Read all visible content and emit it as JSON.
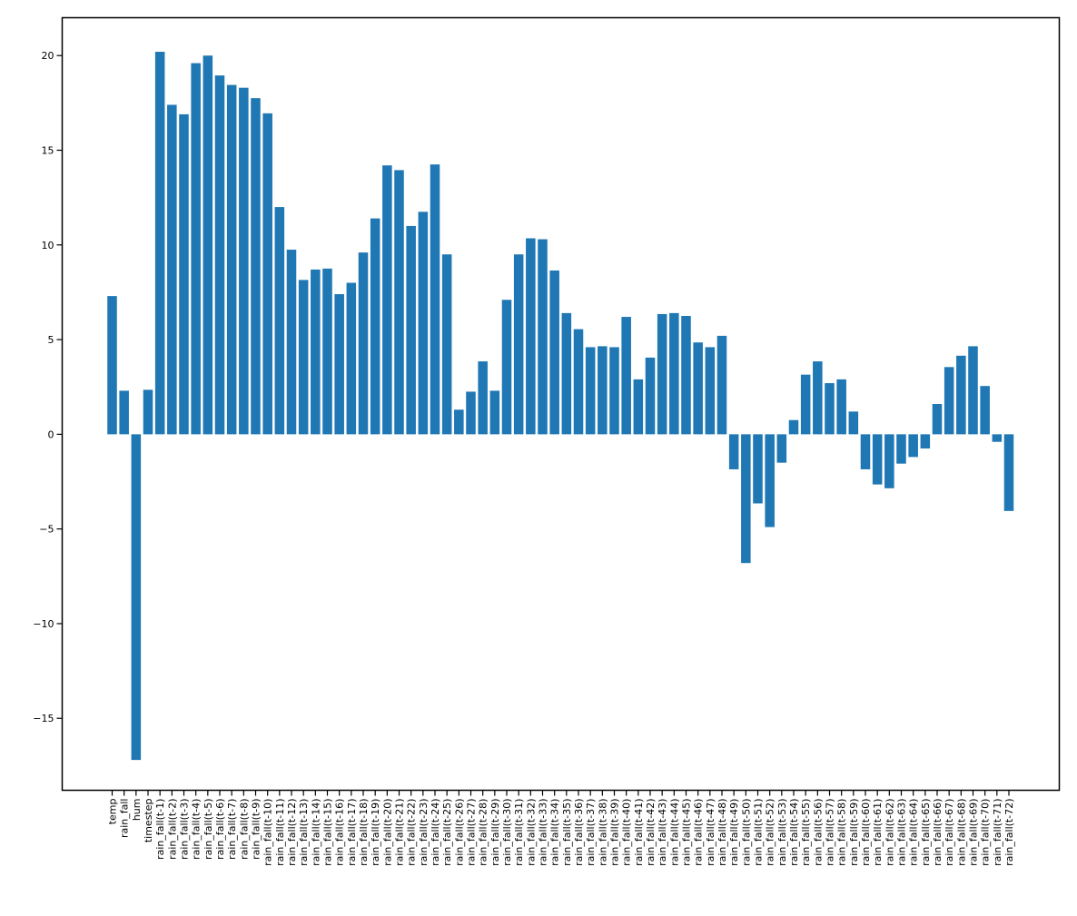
{
  "chart_data": {
    "type": "bar",
    "title": "",
    "xlabel": "",
    "ylabel": "",
    "ylim": [
      -18.8,
      22.0
    ],
    "yticks": [
      -15,
      -10,
      -5,
      0,
      5,
      10,
      15,
      20
    ],
    "ytick_labels": [
      "−15",
      "−10",
      "−5",
      "0",
      "5",
      "10",
      "15",
      "20"
    ],
    "grid": false,
    "legend": "none",
    "bar_color": "#1f77b4",
    "categories": [
      "temp",
      "rain_fall",
      "hum",
      "timestep",
      "rain_fall(t-1)",
      "rain_fall(t-2)",
      "rain_fall(t-3)",
      "rain_fall(t-4)",
      "rain_fall(t-5)",
      "rain_fall(t-6)",
      "rain_fall(t-7)",
      "rain_fall(t-8)",
      "rain_fall(t-9)",
      "rain_fall(t-10)",
      "rain_fall(t-11)",
      "rain_fall(t-12)",
      "rain_fall(t-13)",
      "rain_fall(t-14)",
      "rain_fall(t-15)",
      "rain_fall(t-16)",
      "rain_fall(t-17)",
      "rain_fall(t-18)",
      "rain_fall(t-19)",
      "rain_fall(t-20)",
      "rain_fall(t-21)",
      "rain_fall(t-22)",
      "rain_fall(t-23)",
      "rain_fall(t-24)",
      "rain_fall(t-25)",
      "rain_fall(t-26)",
      "rain_fall(t-27)",
      "rain_fall(t-28)",
      "rain_fall(t-29)",
      "rain_fall(t-30)",
      "rain_fall(t-31)",
      "rain_fall(t-32)",
      "rain_fall(t-33)",
      "rain_fall(t-34)",
      "rain_fall(t-35)",
      "rain_fall(t-36)",
      "rain_fall(t-37)",
      "rain_fall(t-38)",
      "rain_fall(t-39)",
      "rain_fall(t-40)",
      "rain_fall(t-41)",
      "rain_fall(t-42)",
      "rain_fall(t-43)",
      "rain_fall(t-44)",
      "rain_fall(t-45)",
      "rain_fall(t-46)",
      "rain_fall(t-47)",
      "rain_fall(t-48)",
      "rain_fall(t-49)",
      "rain_fall(t-50)",
      "rain_fall(t-51)",
      "rain_fall(t-52)",
      "rain_fall(t-53)",
      "rain_fall(t-54)",
      "rain_fall(t-55)",
      "rain_fall(t-56)",
      "rain_fall(t-57)",
      "rain_fall(t-58)",
      "rain_fall(t-59)",
      "rain_fall(t-60)",
      "rain_fall(t-61)",
      "rain_fall(t-62)",
      "rain_fall(t-63)",
      "rain_fall(t-64)",
      "rain_fall(t-65)",
      "rain_fall(t-66)",
      "rain_fall(t-67)",
      "rain_fall(t-68)",
      "rain_fall(t-69)",
      "rain_fall(t-70)",
      "rain_fall(t-71)",
      "rain_fall(t-72)"
    ],
    "values": [
      7.3,
      2.3,
      -17.2,
      2.35,
      20.2,
      17.4,
      16.9,
      19.6,
      20.0,
      18.95,
      18.45,
      18.3,
      17.75,
      16.95,
      12.0,
      9.75,
      8.15,
      8.7,
      8.75,
      7.4,
      8.0,
      9.6,
      11.4,
      14.2,
      13.95,
      11.0,
      11.75,
      14.25,
      9.5,
      1.3,
      2.25,
      3.85,
      2.3,
      7.1,
      9.5,
      10.35,
      10.3,
      8.65,
      6.4,
      5.55,
      4.6,
      4.65,
      4.6,
      6.2,
      2.9,
      4.05,
      6.35,
      6.4,
      6.25,
      4.85,
      4.6,
      5.2,
      -1.85,
      -6.8,
      -3.65,
      -4.9,
      -1.5,
      0.75,
      3.15,
      3.85,
      2.7,
      2.9,
      1.2,
      -1.85,
      -2.65,
      -2.85,
      -1.55,
      -1.2,
      -0.75,
      1.6,
      3.55,
      4.15,
      4.65,
      2.55,
      -0.4,
      -4.05
    ]
  }
}
